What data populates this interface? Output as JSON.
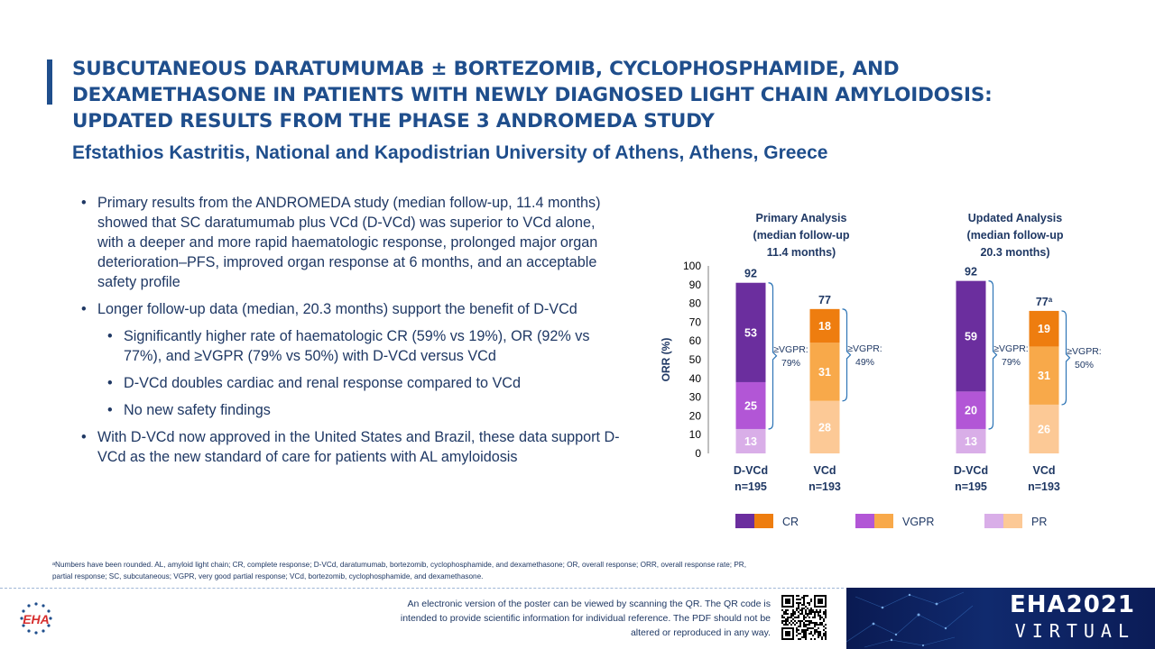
{
  "header": {
    "title": "SUBCUTANEOUS DARATUMUMAB ± BORTEZOMIB, CYCLOPHOSPHAMIDE, AND DEXAMETHASONE IN PATIENTS WITH NEWLY DIAGNOSED LIGHT CHAIN AMYLOIDOSIS: UPDATED RESULTS FROM THE PHASE 3 ANDROMEDA STUDY",
    "author": "Efstathios Kastritis, National and Kapodistrian University of Athens, Athens, Greece"
  },
  "bullets": [
    {
      "text": "Primary results from the ANDROMEDA study (median follow-up, 11.4 months) showed that SC daratumumab plus VCd (D-VCd) was superior to VCd alone, with a deeper and more rapid haematologic response, prolonged major organ deterioration–PFS, improved organ response at 6 months, and an acceptable safety profile",
      "level": 1
    },
    {
      "text": "Longer follow-up data (median, 20.3 months) support the benefit of D-VCd",
      "level": 1
    },
    {
      "text": "Significantly higher rate of haematologic CR (59% vs 19%), OR (92% vs 77%), and ≥VGPR (79% vs 50%) with D-VCd versus VCd",
      "level": 2
    },
    {
      "text": "D-VCd doubles cardiac and renal response compared to VCd",
      "level": 2
    },
    {
      "text": "No new safety findings",
      "level": 2
    },
    {
      "text": "With D-VCd now approved in the United States and Brazil, these data support D-VCd as the new standard of care for patients with AL amyloidosis",
      "level": 1
    }
  ],
  "chart_data": {
    "type": "bar",
    "stacked": true,
    "ylabel": "ORR (%)",
    "ylim": [
      0,
      100
    ],
    "yticks": [
      0,
      10,
      20,
      30,
      40,
      50,
      60,
      70,
      80,
      90,
      100
    ],
    "groups": [
      {
        "title": [
          "Primary Analysis",
          "(median follow-up",
          "11.4 months)"
        ],
        "bars": [
          {
            "arm": "D-VCd",
            "n": "n=195",
            "palette": "purple",
            "total": "92",
            "total_sup": "",
            "PR": 13,
            "VGPR": 25,
            "CR": 53,
            "bracket": [
              "≥VGPR:",
              "79%"
            ]
          },
          {
            "arm": "VCd",
            "n": "n=193",
            "palette": "orange",
            "total": "77",
            "total_sup": "",
            "PR": 28,
            "VGPR": 31,
            "CR": 18,
            "bracket": [
              "≥VGPR:",
              "49%"
            ]
          }
        ]
      },
      {
        "title": [
          "Updated Analysis",
          "(median follow-up",
          "20.3 months)"
        ],
        "bars": [
          {
            "arm": "D-VCd",
            "n": "n=195",
            "palette": "purple",
            "total": "92",
            "total_sup": "",
            "PR": 13,
            "VGPR": 20,
            "CR": 59,
            "bracket": [
              "≥VGPR:",
              "79%"
            ]
          },
          {
            "arm": "VCd",
            "n": "n=193",
            "palette": "orange",
            "total": "77",
            "total_sup": "a",
            "PR": 26,
            "VGPR": 31,
            "CR": 19,
            "bracket": [
              "≥VGPR:",
              "50%"
            ]
          }
        ]
      }
    ],
    "legend": [
      {
        "label": "CR",
        "colors": [
          "#6b2e9e",
          "#ee7d0f"
        ]
      },
      {
        "label": "VGPR",
        "colors": [
          "#b256d6",
          "#f8a94a"
        ]
      },
      {
        "label": "PR",
        "colors": [
          "#d9aee8",
          "#fcc996"
        ]
      }
    ],
    "palettes": {
      "purple": {
        "CR": "#6b2e9e",
        "VGPR": "#b256d6",
        "PR": "#d9aee8"
      },
      "orange": {
        "CR": "#ee7d0f",
        "VGPR": "#f8a94a",
        "PR": "#fcc996"
      }
    },
    "label_color": "#1f3864",
    "bracket_color": "#2e75b6"
  },
  "footnote": "ᵃNumbers have been rounded. AL, amyloid light chain; CR, complete response; D-VCd, daratumumab, bortezomib, cyclophosphamide, and dexamethasone; OR, overall response; ORR, overall response rate; PR, partial response; SC, subcutaneous; VGPR, very good partial response; VCd, bortezomib, cyclophosphamide, and dexamethasone.",
  "footer": {
    "logo_text": "EHA",
    "disclaimer": "An electronic version of the poster can be viewed by scanning the QR. The QR code is intended to provide scientific information for individual reference. The PDF should not be altered or reproduced in any way.",
    "banner_title": "EHA2021",
    "banner_subtitle": "VIRTUAL"
  }
}
